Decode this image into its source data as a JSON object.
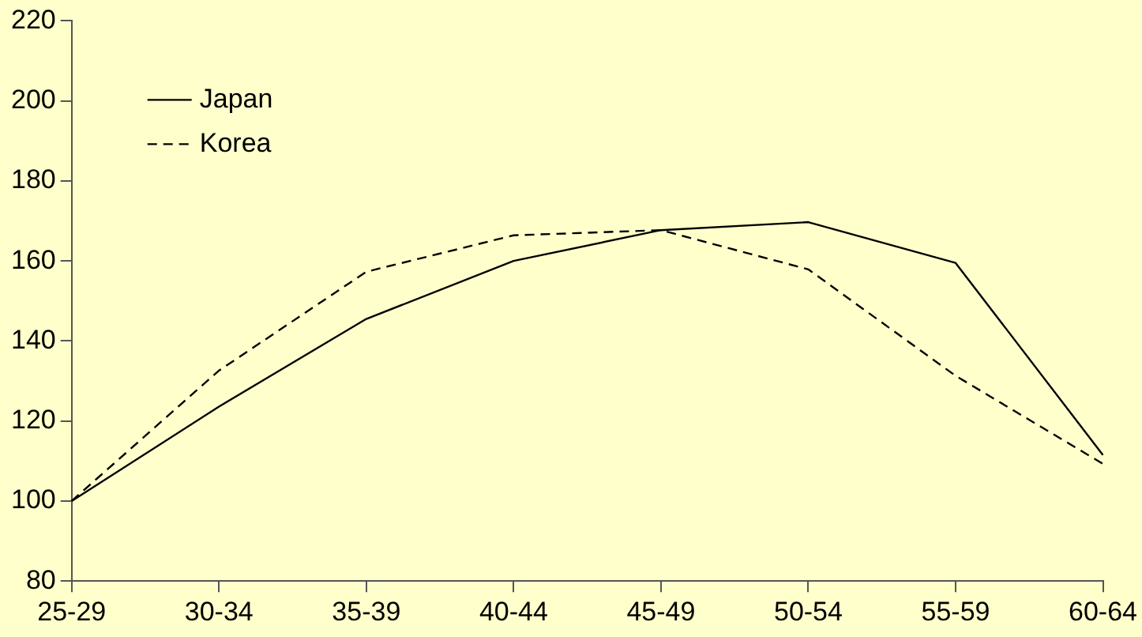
{
  "chart_data": {
    "type": "line",
    "categories": [
      "25-29",
      "30-34",
      "35-39",
      "40-44",
      "45-49",
      "50-54",
      "55-59",
      "60-64"
    ],
    "series": [
      {
        "name": "Japan",
        "color": "#000000",
        "line_style": "solid",
        "values": [
          100,
          123.6,
          145.5,
          160,
          167.7,
          169.7,
          159.5,
          111.5
        ]
      },
      {
        "name": "Korea",
        "color": "#000000",
        "line_style": "dashed",
        "values": [
          100,
          132.6,
          157.3,
          166.4,
          167.7,
          157.9,
          131.3,
          109.3
        ]
      }
    ],
    "ylim": [
      80,
      220
    ],
    "yticks": [
      80,
      100,
      120,
      140,
      160,
      180,
      200,
      220
    ],
    "grid": false,
    "legend": "top left",
    "marker": "none"
  }
}
